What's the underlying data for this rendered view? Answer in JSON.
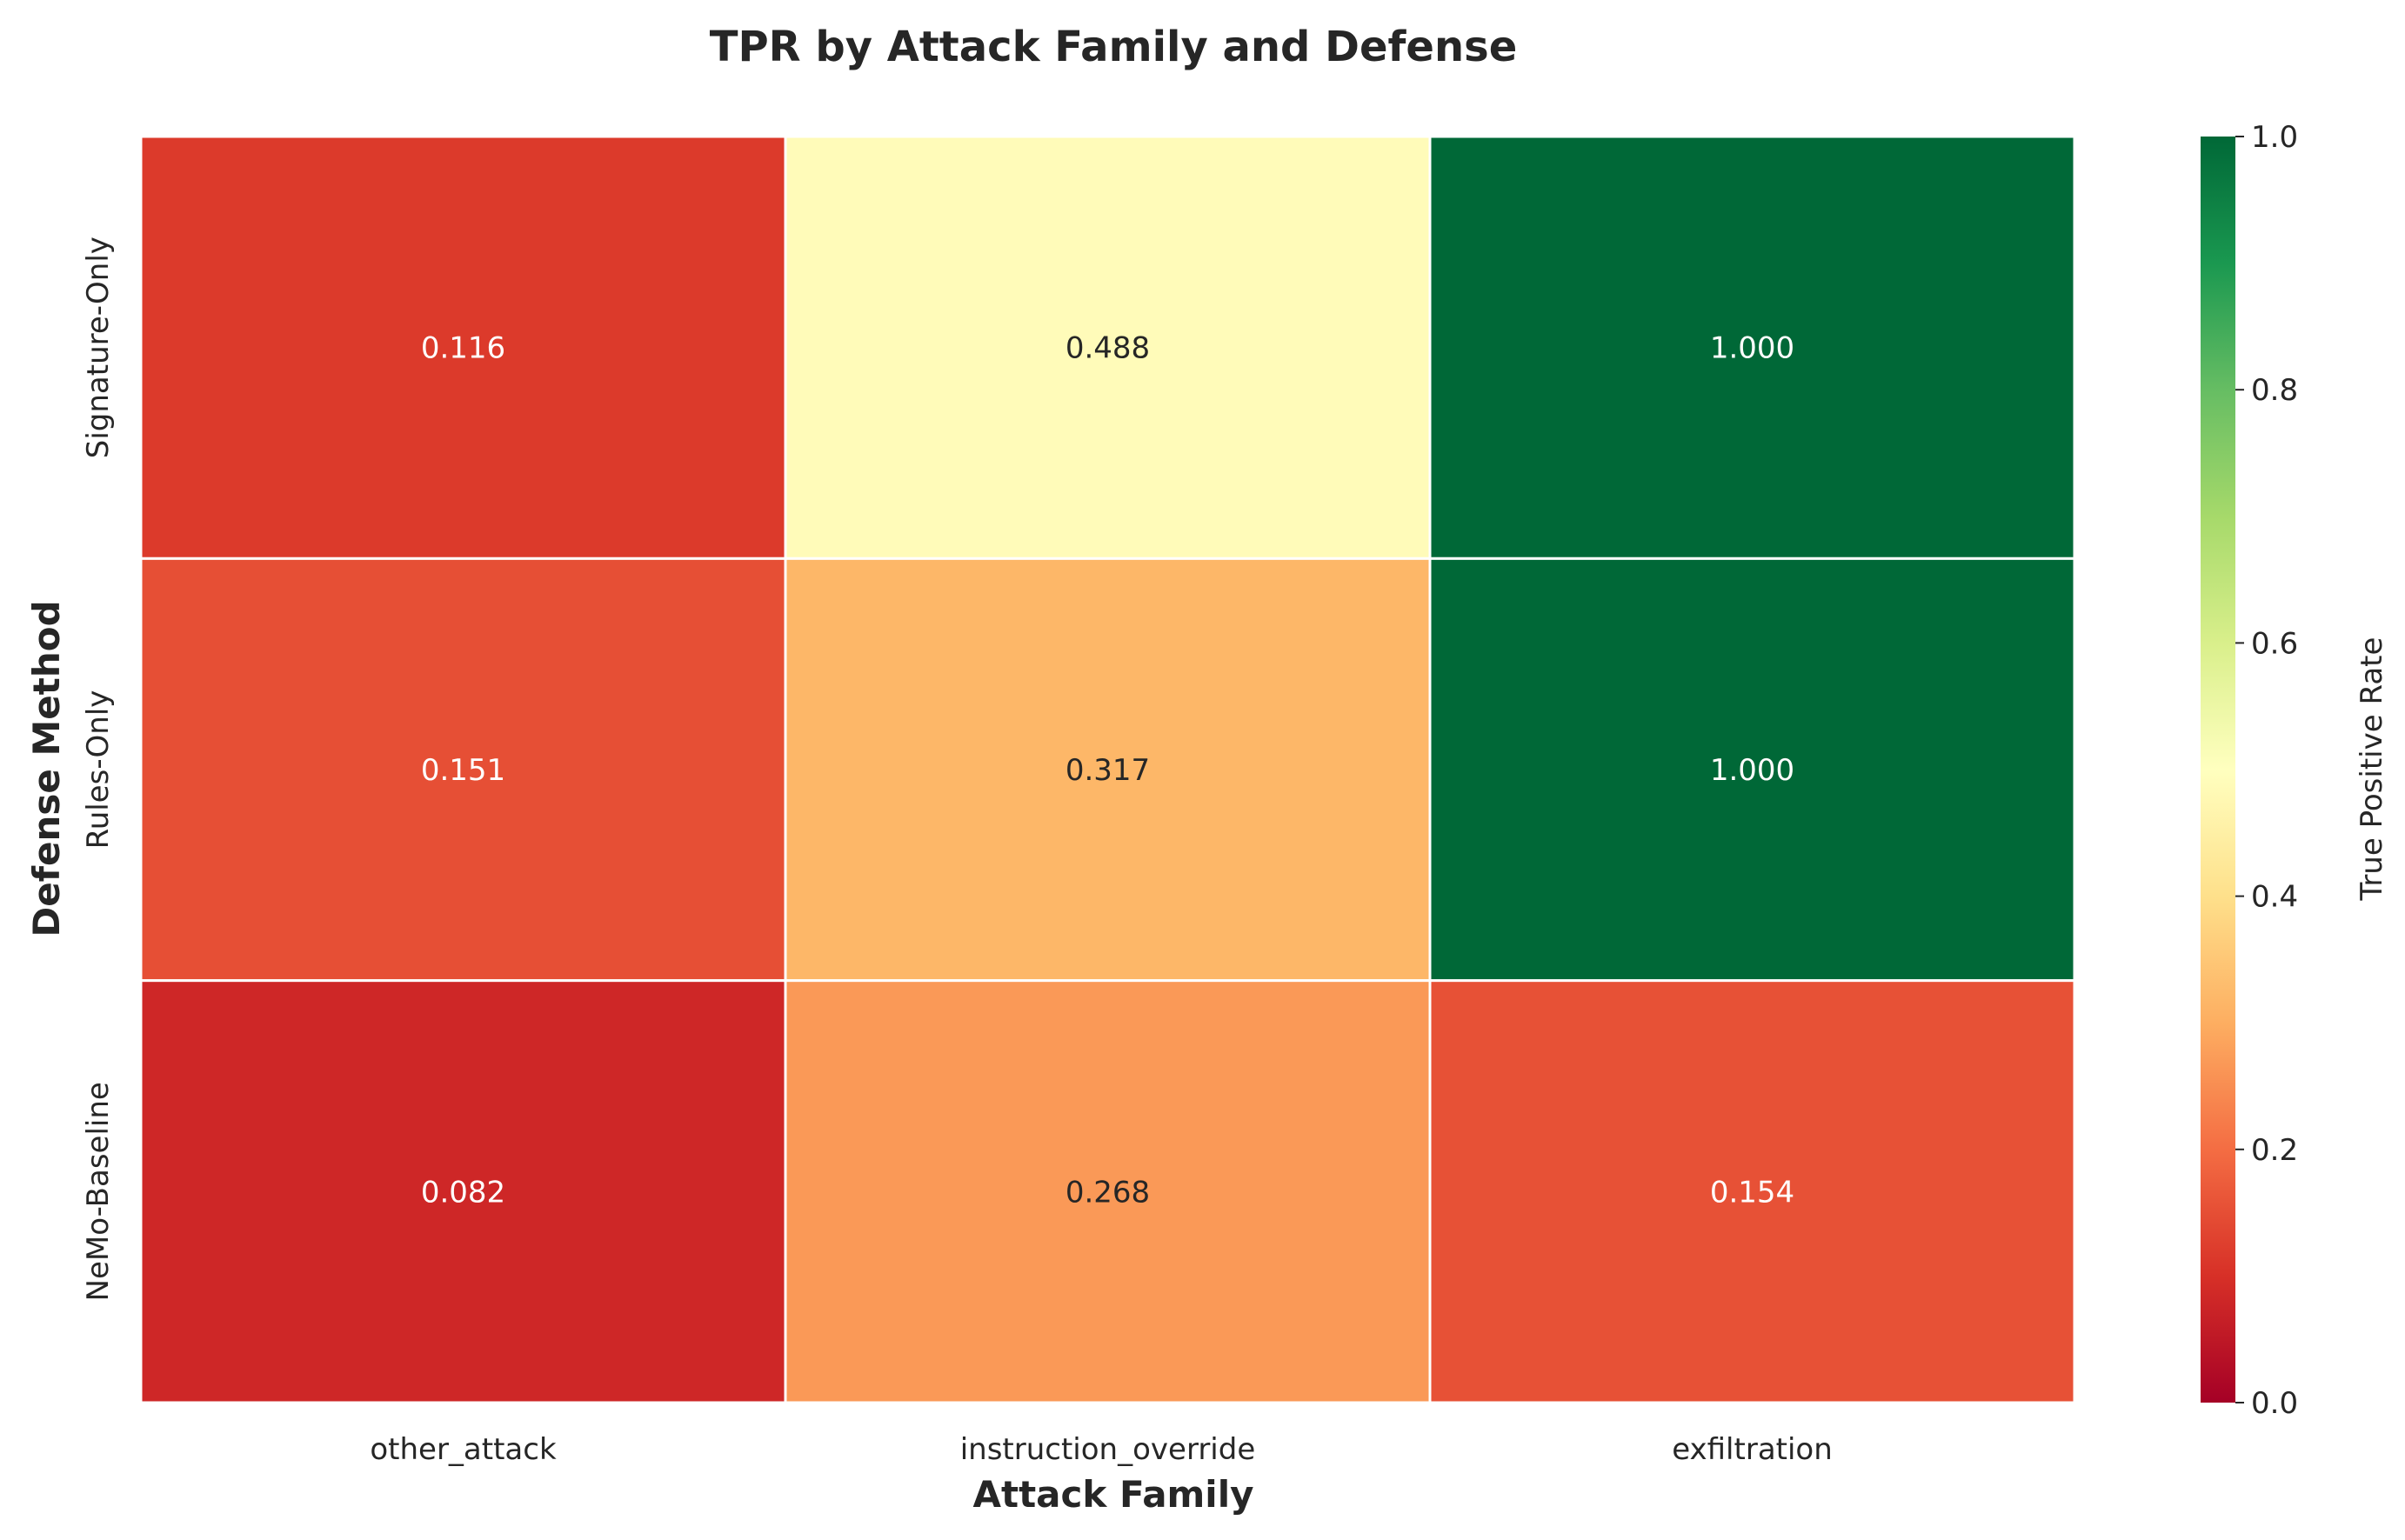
{
  "chart_data": {
    "type": "heatmap",
    "title": "TPR by Attack Family and Defense",
    "xlabel": "Attack Family",
    "ylabel": "Defense Method",
    "x_categories": [
      "other_attack",
      "instruction_override",
      "exfiltration"
    ],
    "y_categories": [
      "Signature-Only",
      "Rules-Only",
      "NeMo-Baseline"
    ],
    "values": [
      [
        0.116,
        0.488,
        1.0
      ],
      [
        0.151,
        0.317,
        1.0
      ],
      [
        0.082,
        0.268,
        0.154
      ]
    ],
    "value_labels": [
      [
        "0.116",
        "0.488",
        "1.000"
      ],
      [
        "0.151",
        "0.317",
        "1.000"
      ],
      [
        "0.082",
        "0.268",
        "0.154"
      ]
    ],
    "colorbar": {
      "label": "True Positive Rate",
      "range": [
        0.0,
        1.0
      ],
      "ticks": [
        "0.0",
        "0.2",
        "0.4",
        "0.6",
        "0.8",
        "1.0"
      ],
      "colormap": "RdYlGn",
      "stops": [
        "#a50026",
        "#d73027",
        "#f46d43",
        "#fdae61",
        "#fee08b",
        "#ffffbf",
        "#d9ef8b",
        "#a6d96a",
        "#66bd63",
        "#1a9850",
        "#006837"
      ]
    },
    "grid_line_color": "#ffffff"
  }
}
